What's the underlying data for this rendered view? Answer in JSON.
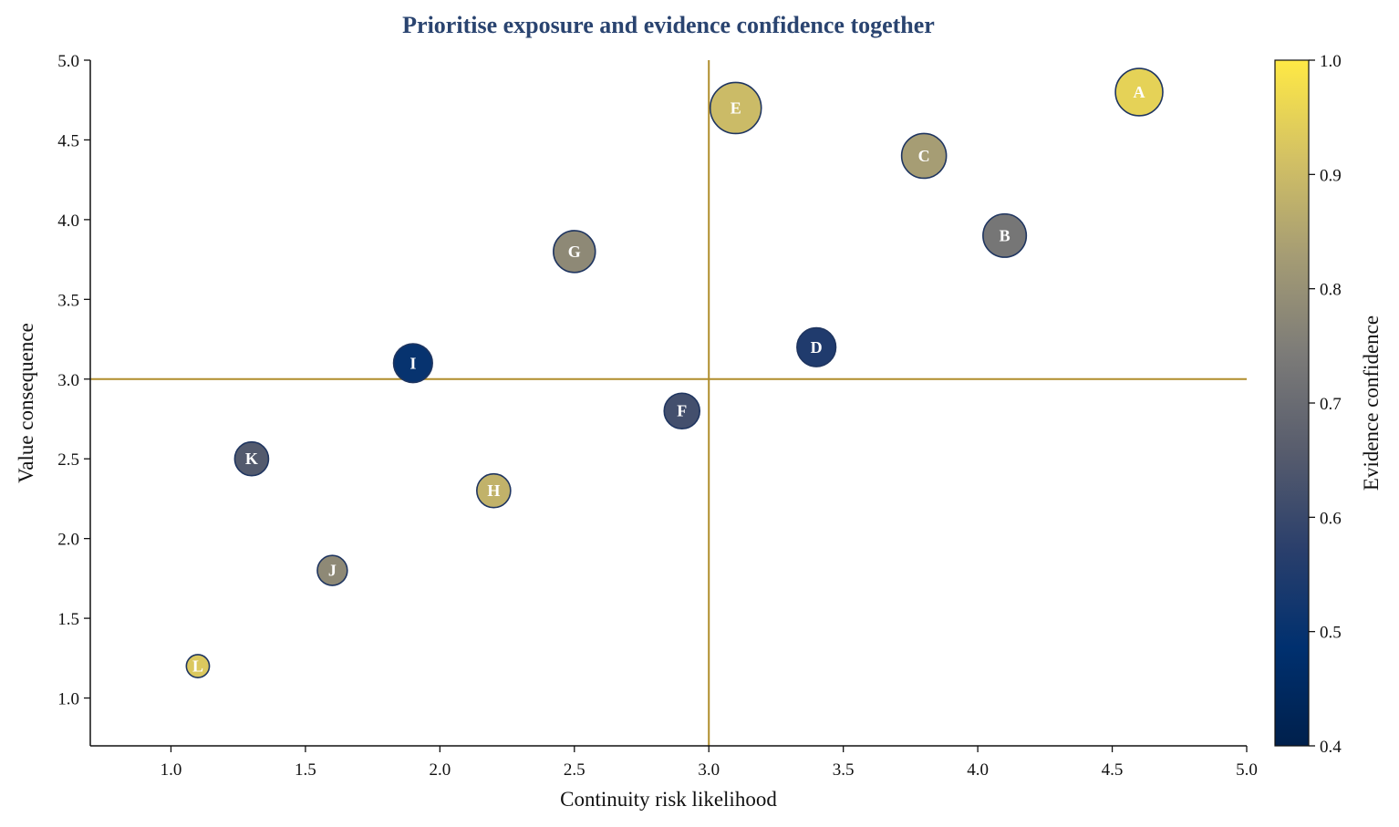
{
  "colors": {
    "title": "#2a4470",
    "reference_line": "#b08d2c",
    "bubble_edge": "#1f3560",
    "axis": "#111111",
    "colormap": [
      "#00204c",
      "#00306f",
      "#2a3f6c",
      "#575c6d",
      "#7c7b78",
      "#a59c74",
      "#d3c164",
      "#ffe945"
    ]
  },
  "chart_data": {
    "type": "scatter",
    "title": "Prioritise exposure and evidence confidence together",
    "xlabel": "Continuity risk likelihood",
    "ylabel": "Value consequence",
    "colorbar_label": "Evidence confidence",
    "xlim": [
      0.7,
      5.0
    ],
    "ylim": [
      0.7,
      5.0
    ],
    "xticks": [
      "1.0",
      "1.5",
      "2.0",
      "2.5",
      "3.0",
      "3.5",
      "4.0",
      "4.5",
      "5.0"
    ],
    "yticks": [
      "1.0",
      "1.5",
      "2.0",
      "2.5",
      "3.0",
      "3.5",
      "4.0",
      "4.5",
      "5.0"
    ],
    "color_range": [
      0.4,
      1.0
    ],
    "colorbar_ticks": [
      "0.4",
      "0.5",
      "0.6",
      "0.7",
      "0.8",
      "0.9",
      "1.0"
    ],
    "reference_lines": {
      "x": 3.0,
      "y": 3.0
    },
    "grid": false,
    "points": [
      {
        "label": "A",
        "x": 4.6,
        "y": 4.8,
        "confidence": 0.95,
        "size": 0.85
      },
      {
        "label": "B",
        "x": 4.1,
        "y": 3.9,
        "confidence": 0.73,
        "size": 0.7
      },
      {
        "label": "C",
        "x": 3.8,
        "y": 4.4,
        "confidence": 0.83,
        "size": 0.75
      },
      {
        "label": "D",
        "x": 3.4,
        "y": 3.2,
        "confidence": 0.55,
        "size": 0.55
      },
      {
        "label": "E",
        "x": 3.1,
        "y": 4.7,
        "confidence": 0.9,
        "size": 1.0
      },
      {
        "label": "F",
        "x": 2.9,
        "y": 2.8,
        "confidence": 0.62,
        "size": 0.45
      },
      {
        "label": "G",
        "x": 2.5,
        "y": 3.8,
        "confidence": 0.78,
        "size": 0.65
      },
      {
        "label": "H",
        "x": 2.2,
        "y": 2.3,
        "confidence": 0.88,
        "size": 0.4
      },
      {
        "label": "I",
        "x": 1.9,
        "y": 3.1,
        "confidence": 0.5,
        "size": 0.55
      },
      {
        "label": "J",
        "x": 1.6,
        "y": 1.8,
        "confidence": 0.78,
        "size": 0.3
      },
      {
        "label": "K",
        "x": 1.3,
        "y": 2.5,
        "confidence": 0.65,
        "size": 0.4
      },
      {
        "label": "L",
        "x": 1.1,
        "y": 1.2,
        "confidence": 0.93,
        "size": 0.15
      }
    ]
  }
}
